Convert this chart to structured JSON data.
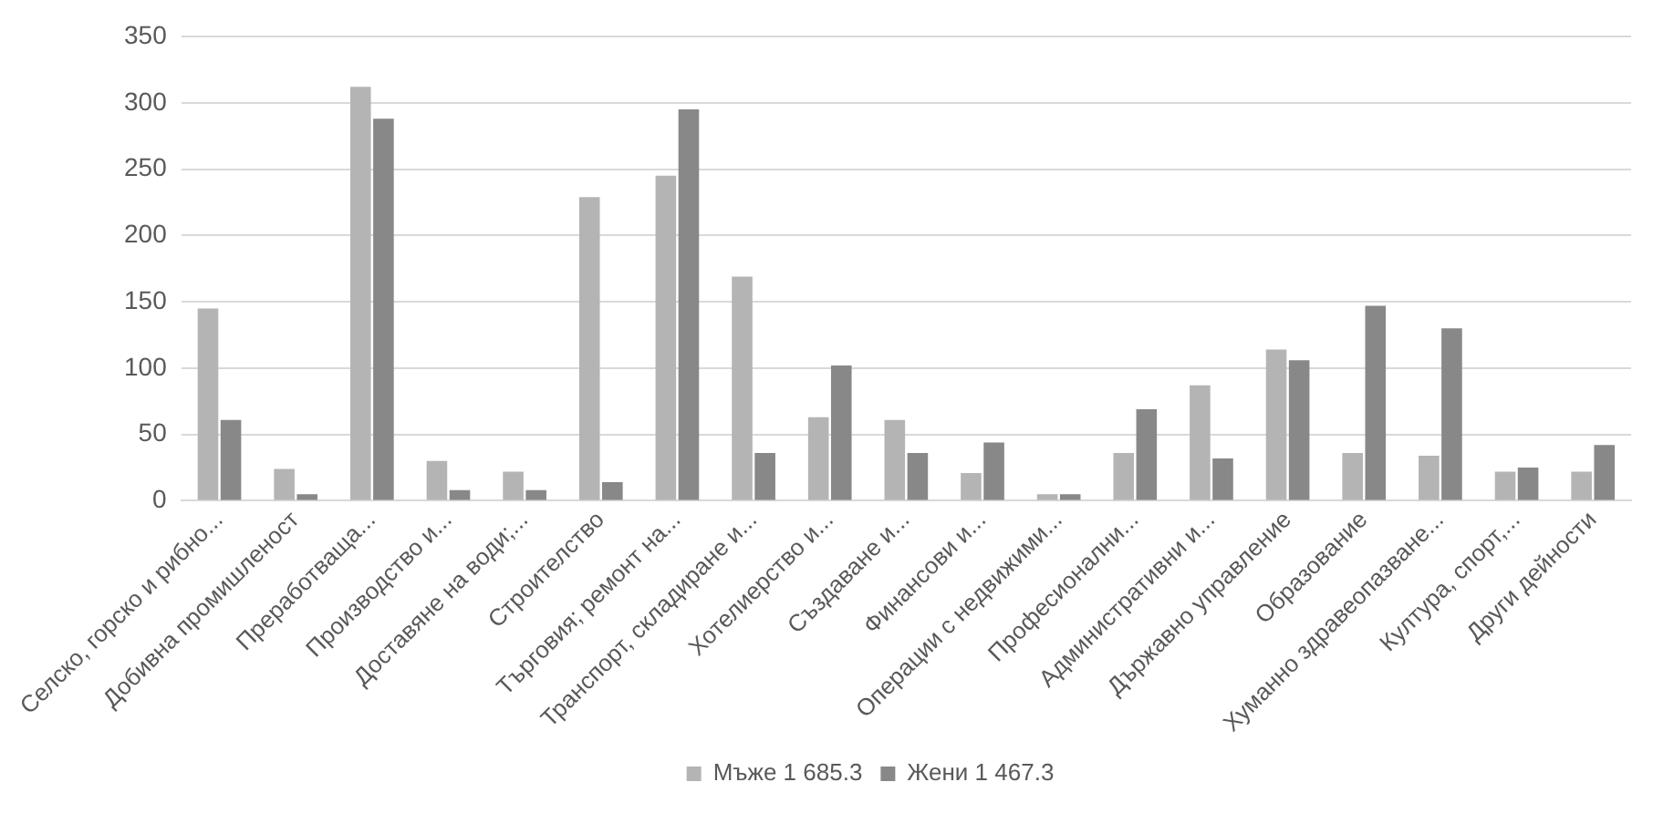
{
  "chart_data": {
    "type": "bar",
    "categories": [
      "Селско, горско и рибно...",
      "Добивна промишленост",
      "Преработваща...",
      "Производство и...",
      "Доставяне на води;...",
      "Строителство",
      "Търговия; ремонт на...",
      "Транспорт, складиране и...",
      "Хотелиерство и...",
      "Създаване и...",
      "Финансови и...",
      "Операции с недвижими...",
      "Професионални...",
      "Административни и...",
      "Държавно управление",
      "Образование",
      "Хуманно здравеопазване...",
      "Култура, спорт,...",
      "Други дейности"
    ],
    "series": [
      {
        "name": "Мъже 1 685.3",
        "color": "#b4b4b4",
        "values": [
          145,
          24,
          312,
          30,
          22,
          229,
          245,
          169,
          63,
          61,
          21,
          5,
          36,
          87,
          114,
          36,
          34,
          22,
          22
        ]
      },
      {
        "name": "Жени 1 467.3",
        "color": "#888888",
        "values": [
          61,
          5,
          288,
          8,
          8,
          14,
          295,
          36,
          102,
          36,
          44,
          5,
          69,
          32,
          106,
          147,
          130,
          25,
          42
        ]
      }
    ],
    "ylim": [
      0,
      350
    ],
    "yticks": [
      0,
      50,
      100,
      150,
      200,
      250,
      300,
      350
    ],
    "grid": "y",
    "legend": "bottom"
  }
}
